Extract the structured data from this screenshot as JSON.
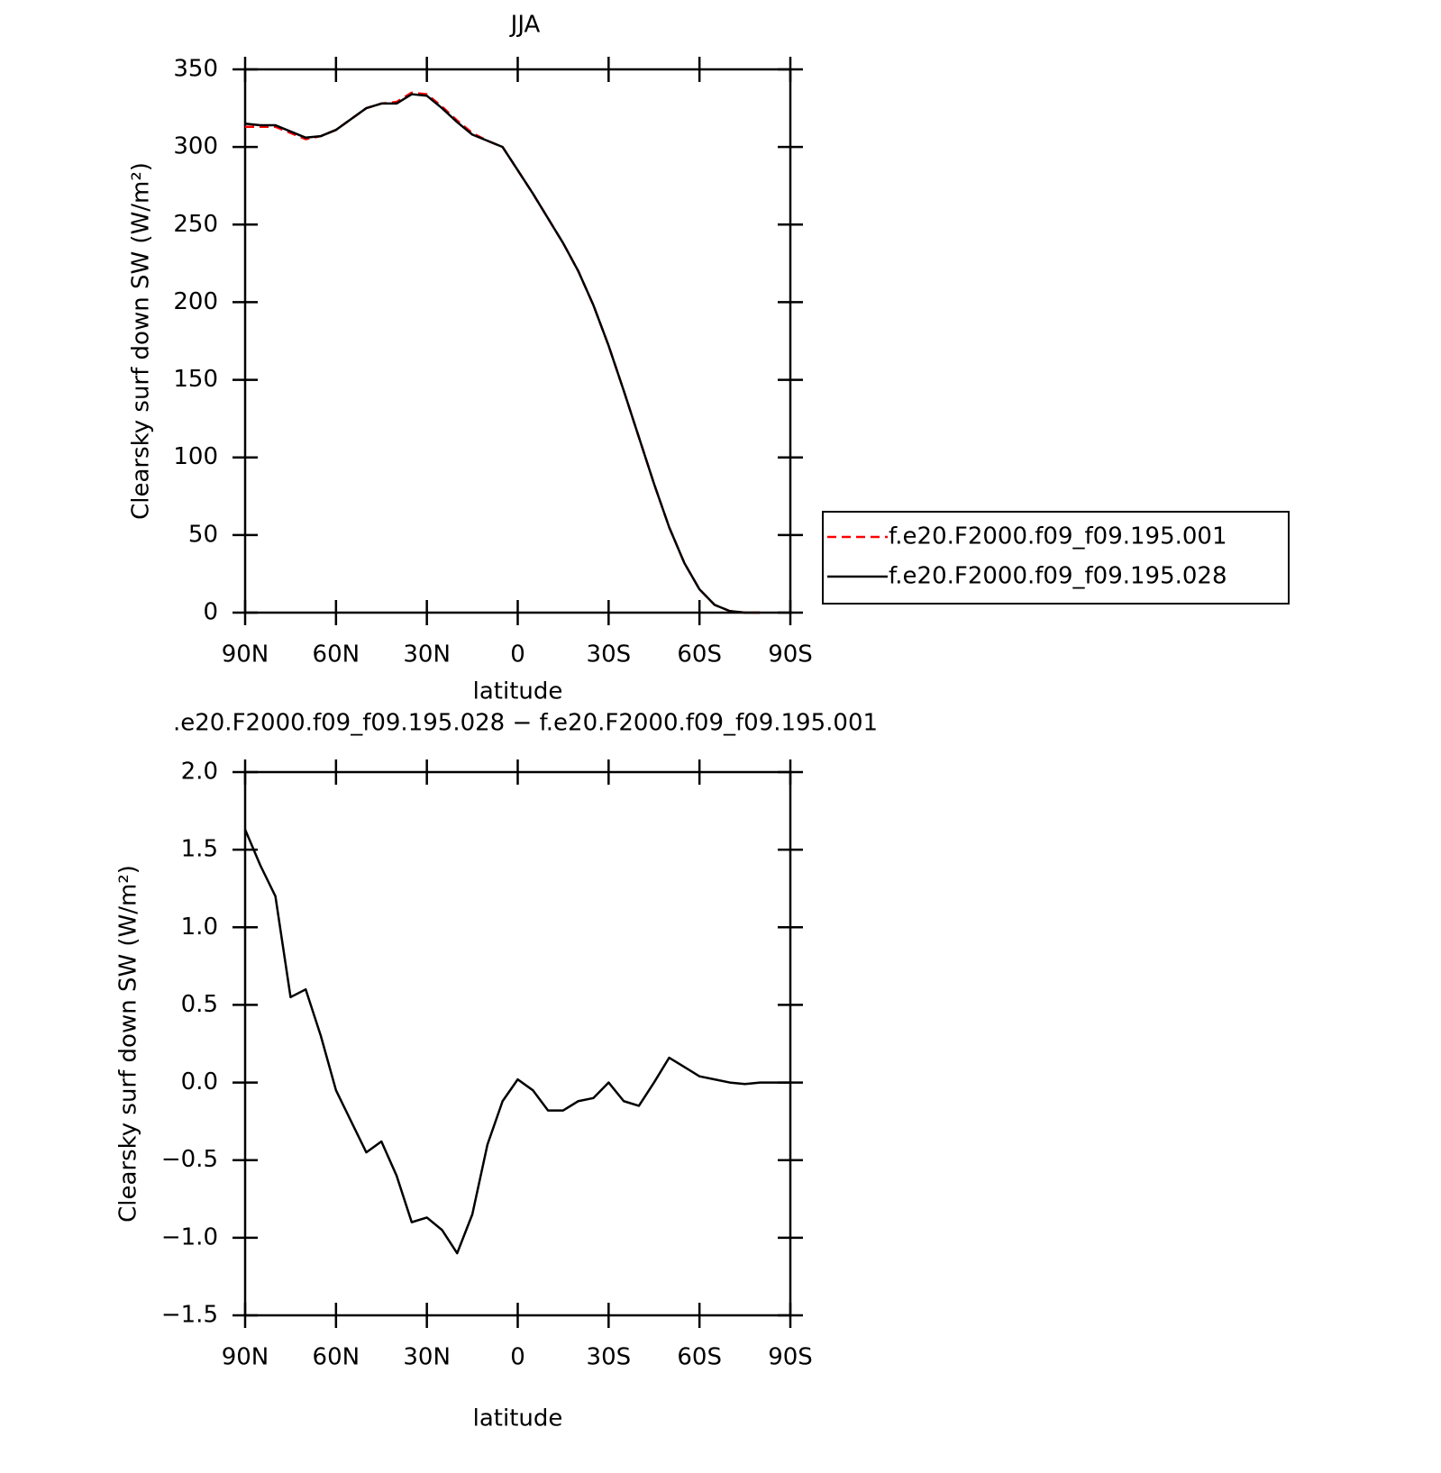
{
  "chart_data": [
    {
      "type": "line",
      "title": "JJA",
      "ylabel": "Clearsky surf down SW (W/m²)",
      "xlabel": "latitude",
      "x": [
        90,
        85,
        80,
        75,
        70,
        65,
        60,
        55,
        50,
        45,
        40,
        35,
        30,
        25,
        20,
        15,
        10,
        5,
        0,
        -5,
        -10,
        -15,
        -20,
        -25,
        -30,
        -35,
        -40,
        -45,
        -50,
        -55,
        -60,
        -65,
        -70,
        -75,
        -80,
        -85,
        -90
      ],
      "xlim": [
        90,
        -90
      ],
      "xticks": [
        {
          "value": 90,
          "label": "90N"
        },
        {
          "value": 60,
          "label": "60N"
        },
        {
          "value": 30,
          "label": "30N"
        },
        0,
        {
          "value": -30,
          "label": "30S"
        },
        {
          "value": -60,
          "label": "60S"
        },
        {
          "value": -90,
          "label": "90S"
        }
      ],
      "ylim": [
        0,
        350
      ],
      "yticks": [
        0,
        50,
        100,
        150,
        200,
        250,
        300,
        350
      ],
      "legend": "right",
      "series": [
        {
          "name": "f.e20.F2000.f09_f09.195.001",
          "color": "#ff0000",
          "dash": true,
          "values": [
            313,
            313,
            313,
            309,
            305,
            307,
            311,
            318,
            325,
            328,
            329,
            335,
            334,
            326,
            317,
            309,
            304,
            300,
            285,
            270,
            254,
            238,
            220,
            198,
            172,
            143,
            113,
            83,
            55,
            32,
            15,
            5,
            1,
            0,
            0,
            null,
            null
          ]
        },
        {
          "name": "f.e20.F2000.f09_f09.195.028",
          "color": "#000000",
          "dash": false,
          "values": [
            315,
            314,
            314,
            310,
            306,
            307,
            311,
            318,
            325,
            328,
            328,
            334,
            333,
            325,
            316,
            308,
            304,
            300,
            285,
            270,
            254,
            238,
            220,
            198,
            172,
            143,
            113,
            83,
            55,
            32,
            15,
            5,
            1,
            0,
            0,
            null,
            null
          ]
        }
      ]
    },
    {
      "type": "line",
      "title": ".e20.F2000.f09_f09.195.028 − f.e20.F2000.f09_f09.195.001",
      "ylabel": "Clearsky surf down SW (W/m²)",
      "xlabel": "latitude",
      "x": [
        90,
        85,
        80,
        75,
        70,
        65,
        60,
        55,
        50,
        45,
        40,
        35,
        30,
        25,
        20,
        15,
        10,
        5,
        0,
        -5,
        -10,
        -15,
        -20,
        -25,
        -30,
        -35,
        -40,
        -45,
        -50,
        -55,
        -60,
        -65,
        -70,
        -75,
        -80,
        -85,
        -90
      ],
      "xlim": [
        90,
        -90
      ],
      "xticks": [
        {
          "value": 90,
          "label": "90N"
        },
        {
          "value": 60,
          "label": "60N"
        },
        {
          "value": 30,
          "label": "30N"
        },
        0,
        {
          "value": -30,
          "label": "30S"
        },
        {
          "value": -60,
          "label": "60S"
        },
        {
          "value": -90,
          "label": "90S"
        }
      ],
      "ylim": [
        -1.5,
        2
      ],
      "yticks": [
        {
          "value": -1.5,
          "label": "−1.5"
        },
        {
          "value": -1,
          "label": "−1.0"
        },
        {
          "value": -0.5,
          "label": "−0.5"
        },
        {
          "value": 0,
          "label": "0.0"
        },
        0.5,
        {
          "value": 1,
          "label": "1.0"
        },
        1.5,
        {
          "value": 2,
          "label": "2.0"
        }
      ],
      "series": [
        {
          "color": "#000000",
          "dash": false,
          "values": [
            1.63,
            1.4,
            1.2,
            0.55,
            0.6,
            0.3,
            -0.05,
            -0.25,
            -0.45,
            -0.38,
            -0.6,
            -0.9,
            -0.87,
            -0.95,
            -1.1,
            -0.85,
            -0.4,
            -0.12,
            0.02,
            -0.05,
            -0.18,
            -0.18,
            -0.12,
            -0.1,
            0,
            -0.12,
            -0.15,
            0,
            0.16,
            0.1,
            0.04,
            0.02,
            0,
            -0.01,
            0,
            0,
            0
          ]
        }
      ]
    }
  ]
}
